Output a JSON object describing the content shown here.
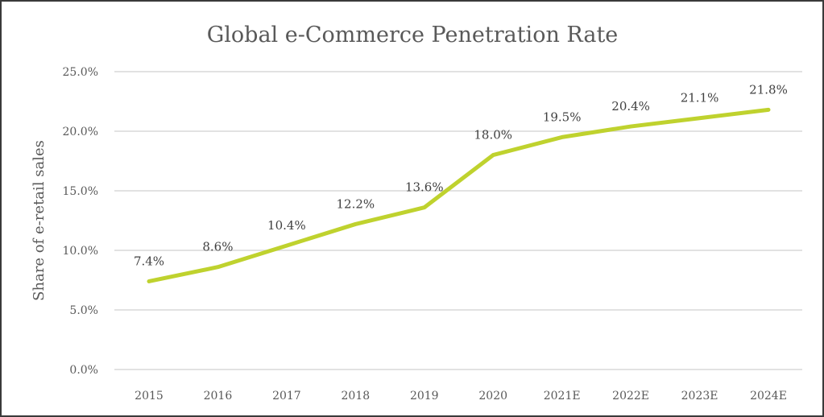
{
  "chart_data": {
    "type": "line",
    "title": "Global e-Commerce Penetration Rate",
    "xlabel": "",
    "ylabel": "Share of e-retail sales",
    "categories": [
      "2015",
      "2016",
      "2017",
      "2018",
      "2019",
      "2020",
      "2021E",
      "2022E",
      "2023E",
      "2024E"
    ],
    "series": [
      {
        "name": "Share of e-retail sales",
        "values": [
          7.4,
          8.6,
          10.4,
          12.2,
          13.6,
          18.0,
          19.5,
          20.4,
          21.1,
          21.8
        ],
        "labels": [
          "7.4%",
          "8.6%",
          "10.4%",
          "12.2%",
          "13.6%",
          "18.0%",
          "19.5%",
          "20.4%",
          "21.1%",
          "21.8%"
        ],
        "color": "#bfd22e"
      }
    ],
    "ylim": [
      0,
      25
    ],
    "yticks": [
      0,
      5,
      10,
      15,
      20,
      25
    ],
    "ytick_labels": [
      "0.0%",
      "5.0%",
      "10.0%",
      "15.0%",
      "20.0%",
      "25.0%"
    ],
    "grid": true,
    "legend": "none"
  }
}
